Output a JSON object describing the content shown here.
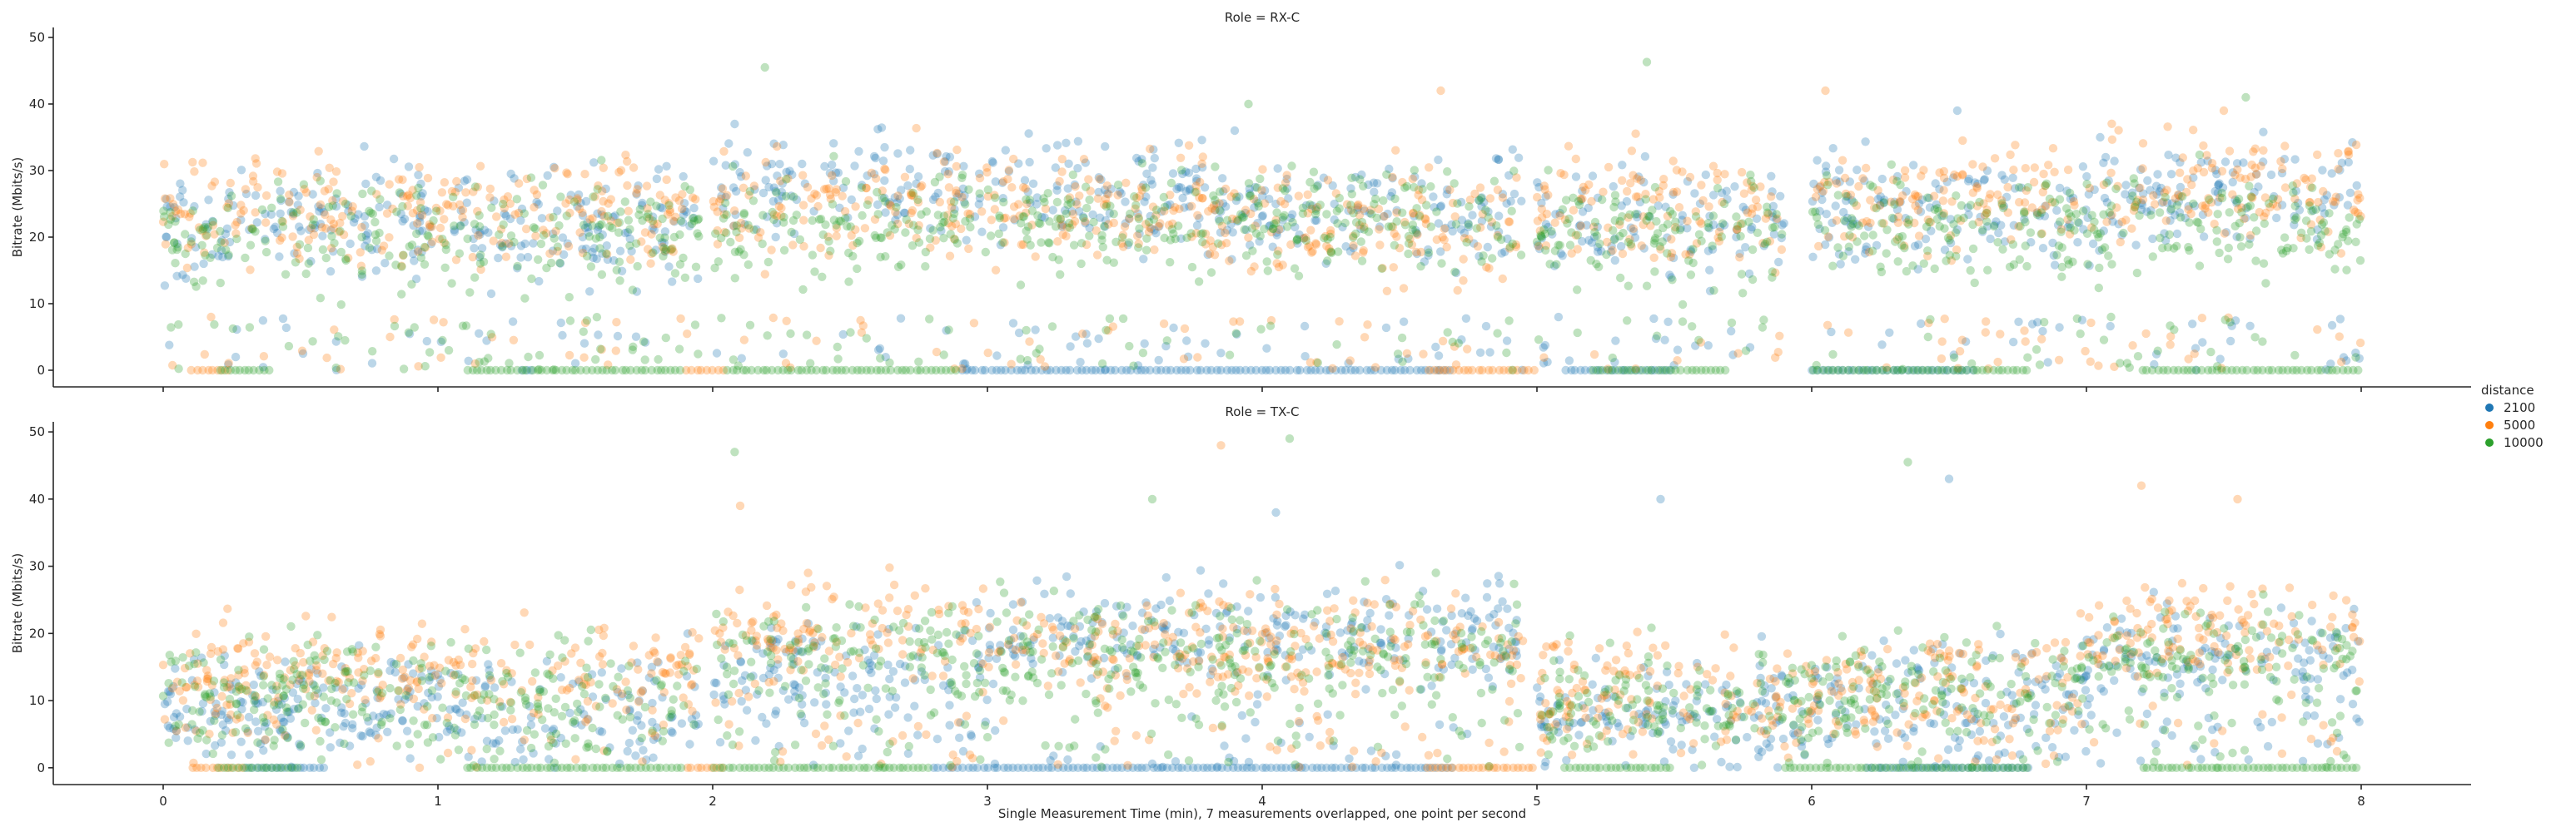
{
  "chart_data": {
    "type": "scatter",
    "layout": "faceted-rows",
    "xlabel": "Single Measurement Time (min), 7 measurements overlapped, one point per second",
    "xlim": [
      -0.4,
      8.4
    ],
    "x_ticks": [
      0,
      1,
      2,
      3,
      4,
      5,
      6,
      7,
      8
    ],
    "ylim": [
      -2.5,
      51.5
    ],
    "y_ticks": [
      0,
      10,
      20,
      30,
      40,
      50
    ],
    "grid": false,
    "legend": {
      "title": "distance",
      "placement": "right",
      "entries": [
        {
          "label": "2100",
          "color": "#1f77b4"
        },
        {
          "label": "5000",
          "color": "#ff7f0e"
        },
        {
          "label": "10000",
          "color": "#2ca02c"
        }
      ]
    },
    "marker_opacity": 0.3,
    "panels": [
      {
        "title": "Role = RX-C",
        "ylabel": "Bitrate (Mbits/s)",
        "series": [
          {
            "name": "2100",
            "color": "#1f77b4",
            "segments": [
              [
                0,
                1.95,
                22
              ],
              [
                2.0,
                3.8,
                27
              ],
              [
                3.8,
                4.95,
                24
              ],
              [
                5.0,
                5.9,
                22
              ],
              [
                6.0,
                7.0,
                24
              ],
              [
                7.0,
                8.0,
                26
              ]
            ],
            "zero_ranges": [
              [
                1.3,
                1.35
              ],
              [
                2.9,
                4.7
              ],
              [
                5.1,
                5.5
              ],
              [
                6.0,
                6.6
              ]
            ],
            "notable_points": [
              [
                2.08,
                37
              ],
              [
                3.9,
                36
              ],
              [
                6.53,
                39
              ],
              [
                7.05,
                35
              ]
            ]
          },
          {
            "name": "5000",
            "color": "#ff7f0e",
            "segments": [
              [
                0,
                1.95,
                24
              ],
              [
                2.0,
                3.8,
                25
              ],
              [
                3.8,
                4.95,
                22
              ],
              [
                5.0,
                5.9,
                24
              ],
              [
                6.0,
                7.0,
                26
              ],
              [
                7.0,
                8.0,
                27
              ]
            ],
            "zero_ranges": [
              [
                0.1,
                0.25
              ],
              [
                1.9,
                2.05
              ],
              [
                4.6,
                5.0
              ]
            ],
            "notable_points": [
              [
                4.65,
                42
              ],
              [
                6.05,
                42
              ],
              [
                7.5,
                39
              ]
            ]
          },
          {
            "name": "10000",
            "color": "#2ca02c",
            "segments": [
              [
                0,
                1.95,
                20
              ],
              [
                2.0,
                3.8,
                22
              ],
              [
                3.8,
                4.95,
                23
              ],
              [
                5.0,
                5.9,
                21
              ],
              [
                6.0,
                7.0,
                22
              ],
              [
                7.0,
                8.0,
                21
              ]
            ],
            "zero_ranges": [
              [
                0.2,
                0.4
              ],
              [
                1.1,
                1.9
              ],
              [
                2.05,
                2.9
              ],
              [
                5.2,
                5.7
              ],
              [
                6.0,
                6.8
              ],
              [
                7.2,
                8.0
              ]
            ],
            "notable_points": [
              [
                2.19,
                45.5
              ],
              [
                5.4,
                46.3
              ],
              [
                3.95,
                40
              ],
              [
                7.58,
                41
              ]
            ]
          }
        ]
      },
      {
        "title": "Role = TX-C",
        "ylabel": "Bitrate (Mbits/s)",
        "series": [
          {
            "name": "2100",
            "color": "#1f77b4",
            "segments": [
              [
                0,
                1.95,
                9
              ],
              [
                2.0,
                3.0,
                14
              ],
              [
                3.0,
                4.95,
                20
              ],
              [
                5.0,
                6.0,
                8
              ],
              [
                6.0,
                7.0,
                11
              ],
              [
                7.0,
                8.0,
                16
              ]
            ],
            "zero_ranges": [
              [
                0.3,
                0.6
              ],
              [
                2.8,
                4.7
              ],
              [
                6.2,
                6.8
              ]
            ],
            "notable_points": [
              [
                4.05,
                38
              ],
              [
                5.45,
                40
              ],
              [
                6.5,
                43
              ]
            ]
          },
          {
            "name": "5000",
            "color": "#ff7f0e",
            "segments": [
              [
                0,
                1.95,
                14
              ],
              [
                2.0,
                3.0,
                20
              ],
              [
                3.0,
                4.95,
                18
              ],
              [
                5.0,
                6.0,
                11
              ],
              [
                6.0,
                7.0,
                12
              ],
              [
                7.0,
                8.0,
                20
              ]
            ],
            "zero_ranges": [
              [
                0.1,
                0.3
              ],
              [
                1.9,
                2.05
              ],
              [
                4.6,
                5.0
              ]
            ],
            "notable_points": [
              [
                3.85,
                48
              ],
              [
                7.2,
                42
              ],
              [
                7.55,
                40
              ],
              [
                2.1,
                39
              ]
            ]
          },
          {
            "name": "10000",
            "color": "#2ca02c",
            "segments": [
              [
                0,
                1.95,
                11
              ],
              [
                2.0,
                3.0,
                16
              ],
              [
                3.0,
                4.95,
                17
              ],
              [
                5.0,
                6.0,
                10
              ],
              [
                6.0,
                7.0,
                12
              ],
              [
                7.0,
                8.0,
                16
              ]
            ],
            "zero_ranges": [
              [
                0.2,
                0.5
              ],
              [
                1.1,
                1.9
              ],
              [
                2.0,
                2.8
              ],
              [
                5.1,
                5.5
              ],
              [
                5.9,
                6.8
              ],
              [
                7.2,
                8.0
              ]
            ],
            "notable_points": [
              [
                2.08,
                47
              ],
              [
                4.1,
                49
              ],
              [
                6.35,
                45.5
              ],
              [
                3.6,
                40
              ]
            ]
          }
        ]
      }
    ]
  }
}
